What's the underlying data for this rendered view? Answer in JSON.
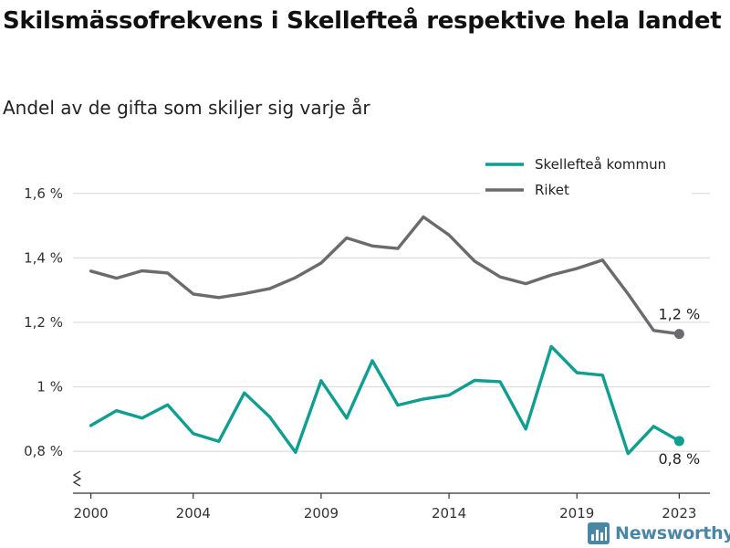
{
  "title": "Skilsmässofrekvens i Skellefteå respektive hela landet",
  "subtitle": "Andel av de gifta som skiljer sig varje år",
  "brand": {
    "name": "Newsworthy"
  },
  "colors": {
    "skelleftea": "#0f9e8f",
    "riket": "#6b6b6f",
    "grid": "#dddddd",
    "axis": "#333333",
    "brand": "#4a86a6"
  },
  "chart_data": {
    "type": "line",
    "x": [
      2000,
      2001,
      2002,
      2003,
      2004,
      2005,
      2006,
      2007,
      2008,
      2009,
      2010,
      2011,
      2012,
      2013,
      2014,
      2015,
      2016,
      2017,
      2018,
      2019,
      2020,
      2021,
      2022,
      2023
    ],
    "xticks": [
      2000,
      2004,
      2009,
      2014,
      2019,
      2023
    ],
    "xlim": [
      1999.3,
      2024.2
    ],
    "ylim": [
      0.67,
      1.69
    ],
    "yticks": [
      {
        "value": 0.8,
        "label": "0,8 %"
      },
      {
        "value": 1.0,
        "label": "1 %"
      },
      {
        "value": 1.2,
        "label": "1,2 %"
      },
      {
        "value": 1.4,
        "label": "1,4 %"
      },
      {
        "value": 1.6,
        "label": "1,6 %"
      }
    ],
    "axis_break": true,
    "grid": true,
    "legend_position": "top-right",
    "series": [
      {
        "name": "Skellefteå kommun",
        "color": "#0f9e8f",
        "values": [
          0.88,
          0.926,
          0.903,
          0.944,
          0.855,
          0.831,
          0.981,
          0.906,
          0.797,
          1.019,
          0.903,
          1.081,
          0.943,
          0.962,
          0.974,
          1.02,
          1.016,
          0.869,
          1.125,
          1.044,
          1.036,
          0.793,
          0.877,
          0.832
        ],
        "end_label": "0,8 %"
      },
      {
        "name": "Riket",
        "color": "#6b6b6f",
        "values": [
          1.359,
          1.337,
          1.36,
          1.353,
          1.288,
          1.277,
          1.289,
          1.305,
          1.339,
          1.384,
          1.462,
          1.437,
          1.429,
          1.527,
          1.471,
          1.39,
          1.341,
          1.32,
          1.347,
          1.367,
          1.393,
          1.288,
          1.175,
          1.164
        ],
        "end_label": "1,2 %"
      }
    ]
  }
}
